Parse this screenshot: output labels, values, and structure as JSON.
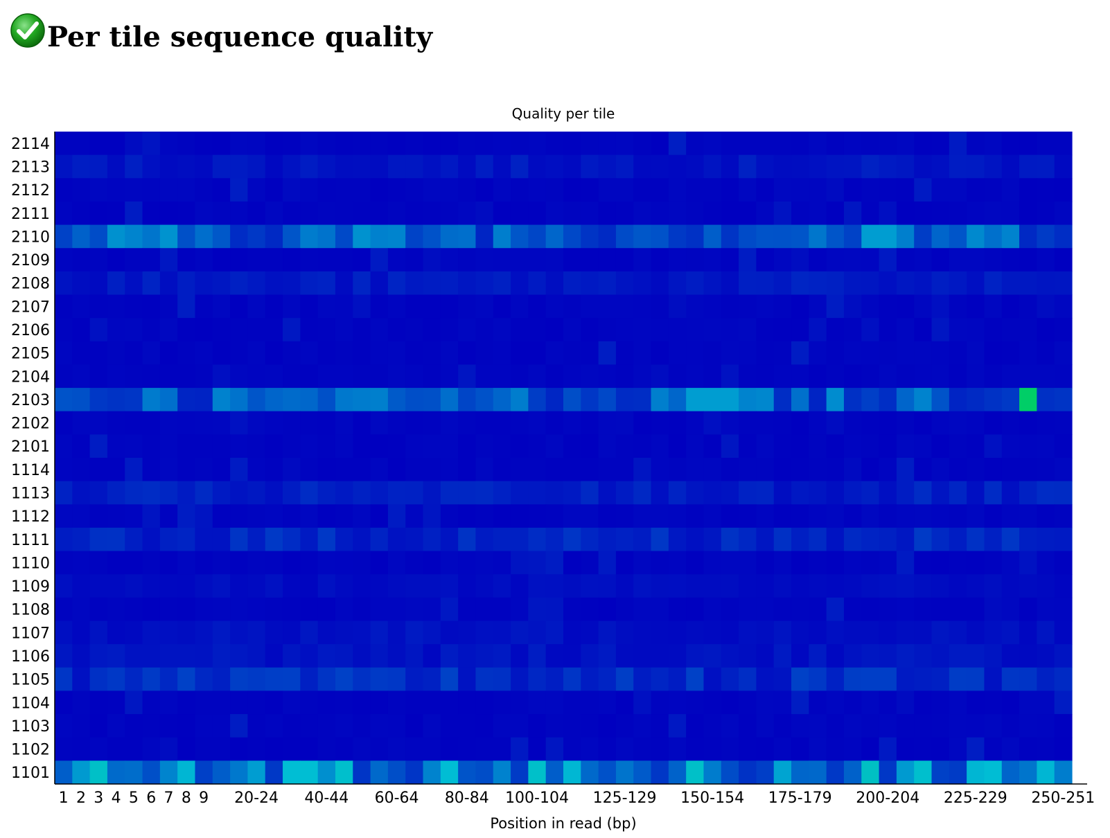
{
  "header": {
    "status": "pass",
    "status_icon": "green-check-icon",
    "title": "Per tile sequence quality"
  },
  "chart_data": {
    "type": "heatmap",
    "title": "Quality per tile",
    "xlabel": "Position in read (bp)",
    "ylabel": "",
    "tiles": [
      "2114",
      "2113",
      "2112",
      "2111",
      "2110",
      "2109",
      "2108",
      "2107",
      "2106",
      "2105",
      "2104",
      "2103",
      "2102",
      "2101",
      "1114",
      "1113",
      "1112",
      "1111",
      "1110",
      "1109",
      "1108",
      "1107",
      "1106",
      "1105",
      "1104",
      "1103",
      "1102",
      "1101"
    ],
    "x_tick_labels": [
      "1",
      "2",
      "3",
      "4",
      "5",
      "6",
      "7",
      "8",
      "9",
      "20-24",
      "40-44",
      "60-64",
      "80-84",
      "100-104",
      "125-129",
      "150-154",
      "175-179",
      "200-204",
      "225-229",
      "250-251"
    ],
    "x_columns": 58,
    "color_scale": {
      "low": "#0000c0",
      "mid": "#0096d2",
      "high": "#00d24c"
    },
    "hot_spots": [
      {
        "tile": "2110",
        "level": "elevated across positions"
      },
      {
        "tile": "2103",
        "level": "elevated across positions, peak near 240-244"
      },
      {
        "tile": "1105",
        "level": "moderate elevation at 80-204"
      },
      {
        "tile": "1101",
        "level": "elevated across positions, peaks at 8 and 245-249"
      },
      {
        "tile": "1111",
        "level": "slight elevation"
      },
      {
        "tile": "1113",
        "level": "slight elevation"
      }
    ]
  }
}
